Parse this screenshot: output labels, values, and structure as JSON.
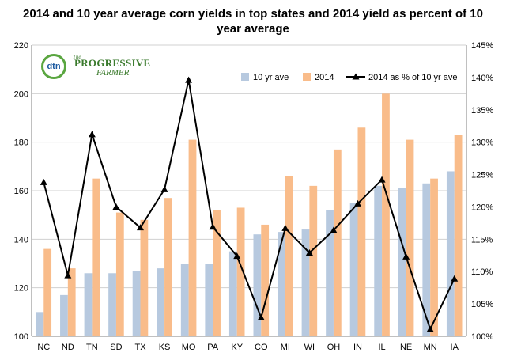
{
  "title": "2014 and 10 year average corn yields in top states and 2014 yield as percent of 10 year average",
  "logo": {
    "mark": "dtn",
    "prefix": "The",
    "line1": "PROGRESSIVE",
    "line2": "FARMER"
  },
  "chart_data": {
    "type": "bar",
    "categories": [
      "NC",
      "ND",
      "TN",
      "SD",
      "TX",
      "KS",
      "MO",
      "PA",
      "KY",
      "CO",
      "MI",
      "WI",
      "OH",
      "IN",
      "IL",
      "NE",
      "MN",
      "IA"
    ],
    "series": [
      {
        "name": "10 yr ave",
        "type": "bar",
        "axis": "left",
        "color": "#b7c9df",
        "values": [
          110,
          117,
          126,
          126,
          127,
          128,
          130,
          130,
          135,
          142,
          143,
          144,
          152,
          155,
          162,
          161,
          163,
          168
        ]
      },
      {
        "name": "2014",
        "type": "bar",
        "axis": "left",
        "color": "#f9bc8a",
        "values": [
          136,
          128,
          165,
          151,
          148,
          157,
          181,
          152,
          153,
          146,
          166,
          162,
          177,
          186,
          200,
          181,
          165,
          183
        ]
      },
      {
        "name": "2014 as % of 10 yr ave",
        "type": "line",
        "axis": "right",
        "color": "#000000",
        "values": [
          123.8,
          109.4,
          131.2,
          120.0,
          116.8,
          122.7,
          139.6,
          116.9,
          112.4,
          102.9,
          116.7,
          112.9,
          116.4,
          120.5,
          124.2,
          112.3,
          101.1,
          108.9
        ]
      }
    ],
    "y_left": {
      "min": 100,
      "max": 220,
      "ticks": [
        "100",
        "120",
        "140",
        "160",
        "180",
        "200",
        "220"
      ]
    },
    "y_right": {
      "min": 100,
      "max": 145,
      "ticks": [
        "100%",
        "105%",
        "110%",
        "115%",
        "120%",
        "125%",
        "130%",
        "135%",
        "140%",
        "145%"
      ]
    },
    "grid": true,
    "legend": "top-right"
  }
}
